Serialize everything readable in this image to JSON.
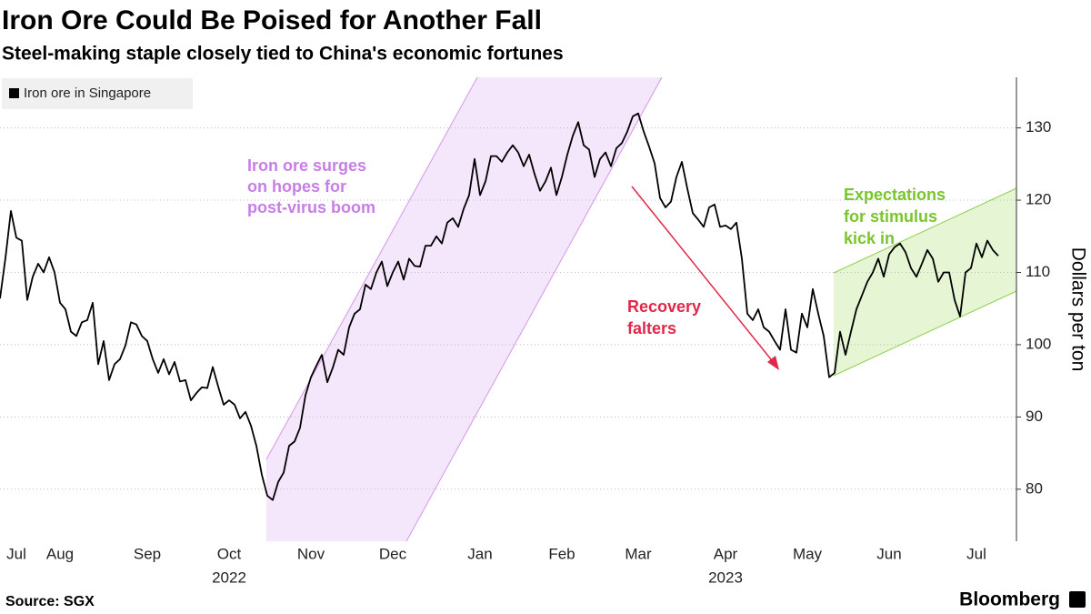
{
  "chart_data": {
    "type": "line",
    "title": "Iron Ore Could Be Poised for Another Fall",
    "subtitle": "Steel-making staple closely tied to China's economic fortunes",
    "y_axis_label": "Dollars per ton",
    "source": "Source: SGX",
    "brand": "Bloomberg",
    "legend_position": "top-left",
    "grid": true,
    "ylim": [
      72.8,
      137
    ],
    "yticks": [
      80,
      90,
      100,
      110,
      120,
      130
    ],
    "year_labels": [
      {
        "label": "2022",
        "under": "Oct"
      },
      {
        "label": "2023",
        "under": "Apr"
      }
    ],
    "annotations": [
      {
        "lines": [
          "Iron ore surges",
          "on hopes for",
          "post-virus boom"
        ],
        "color": "#c77ee6"
      },
      {
        "lines": [
          "Recovery",
          "falters"
        ],
        "color": "#e0284a"
      },
      {
        "lines": [
          "Expectations",
          "for stimulus",
          "kick in"
        ],
        "color": "#7ac52e"
      }
    ],
    "categories": [
      null,
      null,
      null,
      "Jul",
      null,
      null,
      null,
      null,
      null,
      null,
      null,
      "Aug",
      null,
      null,
      null,
      null,
      null,
      null,
      null,
      null,
      null,
      null,
      null,
      null,
      null,
      null,
      null,
      "Sep",
      null,
      null,
      null,
      null,
      null,
      null,
      null,
      null,
      null,
      null,
      null,
      null,
      null,
      null,
      "Oct",
      null,
      null,
      null,
      null,
      null,
      null,
      null,
      null,
      null,
      null,
      null,
      null,
      null,
      null,
      "Nov",
      null,
      null,
      null,
      null,
      null,
      null,
      null,
      null,
      null,
      null,
      null,
      null,
      null,
      null,
      "Dec",
      null,
      null,
      null,
      null,
      null,
      null,
      null,
      null,
      null,
      null,
      null,
      null,
      null,
      null,
      null,
      "Jan",
      null,
      null,
      null,
      null,
      null,
      null,
      null,
      null,
      null,
      null,
      null,
      null,
      null,
      null,
      "Feb",
      null,
      null,
      null,
      null,
      null,
      null,
      null,
      null,
      null,
      null,
      null,
      null,
      null,
      "Mar",
      null,
      null,
      null,
      null,
      null,
      null,
      null,
      null,
      null,
      null,
      null,
      null,
      null,
      null,
      null,
      "Apr",
      null,
      null,
      null,
      null,
      null,
      null,
      null,
      null,
      null,
      null,
      null,
      null,
      null,
      null,
      "May",
      null,
      null,
      null,
      null,
      null,
      null,
      null,
      null,
      null,
      null,
      null,
      null,
      null,
      null,
      "Jun",
      null,
      null,
      null,
      null,
      null,
      null,
      null,
      null,
      null,
      null,
      null,
      null,
      null,
      null,
      null,
      "Jul",
      null,
      null,
      null,
      null
    ],
    "series": [
      {
        "name": "Iron ore in Singapore",
        "color": "#000000",
        "values": [
          106.4,
          112,
          118.5,
          114.8,
          114.4,
          106.2,
          109.4,
          111.2,
          110,
          112.1,
          110,
          105.8,
          104.9,
          101.8,
          101.2,
          103.1,
          103.4,
          105.8,
          97.3,
          100.5,
          95.1,
          97.3,
          98,
          99.9,
          103.1,
          102.8,
          101.2,
          100.5,
          98,
          96.1,
          98,
          95.9,
          97.6,
          94.9,
          95.1,
          92.3,
          93.3,
          94.1,
          94,
          96.9,
          94.2,
          91.7,
          92.3,
          91.7,
          89.8,
          90.7,
          88.8,
          86,
          82,
          79.1,
          78.5,
          81,
          82.3,
          86,
          86.6,
          88.5,
          93,
          95.5,
          97.1,
          98.6,
          94.8,
          96.8,
          99.3,
          98.6,
          102.4,
          104.3,
          104.9,
          108.3,
          107.7,
          110,
          111.5,
          108.1,
          110,
          111.5,
          109,
          111.9,
          110.9,
          110.8,
          113.7,
          113.7,
          115,
          114,
          116.9,
          117.5,
          116.3,
          118.8,
          120.7,
          125.7,
          120.7,
          122.6,
          126.1,
          126.1,
          125.3,
          126.6,
          127.6,
          126.6,
          124.7,
          126.3,
          123.6,
          121.3,
          122.6,
          124.5,
          120.7,
          123.2,
          126.3,
          128.9,
          130.8,
          127.6,
          127,
          123.2,
          125.7,
          126.6,
          124.7,
          127.2,
          127.9,
          129.5,
          131.6,
          132,
          129.5,
          127.4,
          125.1,
          120.3,
          119,
          119.8,
          123.2,
          125.3,
          121.6,
          118.2,
          117.3,
          116.3,
          119,
          119.4,
          116.3,
          116.5,
          116,
          116.9,
          111.9,
          104.3,
          103.4,
          104.9,
          102.4,
          101.8,
          100.5,
          99.3,
          104.9,
          99.3,
          98.9,
          104.3,
          102.4,
          107.7,
          104.3,
          101.2,
          95.5,
          96.1,
          101.8,
          98.6,
          101.8,
          104.9,
          106.8,
          108.7,
          110,
          111.9,
          109.4,
          112.5,
          113.5,
          114,
          112.8,
          110.6,
          109.4,
          111.2,
          113.1,
          111.9,
          108.7,
          110,
          110,
          106.2,
          103.9,
          110,
          110.6,
          114,
          112.1,
          114.4,
          113.1,
          112.3
        ]
      }
    ]
  }
}
